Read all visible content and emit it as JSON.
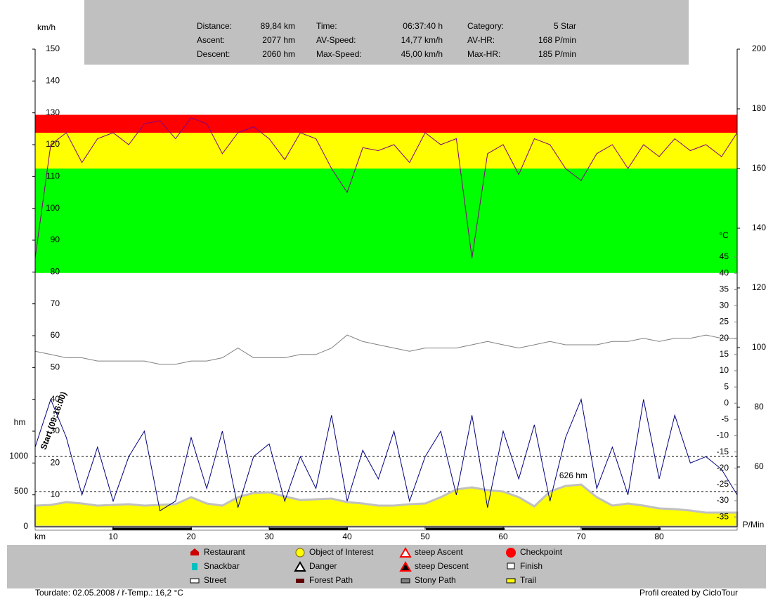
{
  "summary": {
    "rows": [
      [
        "Distance:",
        "89,84 km",
        "Time:",
        "06:37:40 h",
        "Category:",
        "5 Star"
      ],
      [
        "Ascent:",
        "2077 hm",
        "AV-Speed:",
        "14,77 km/h",
        "AV-HR:",
        "168 P/min"
      ],
      [
        "Descent:",
        "2060 hm",
        "Max-Speed:",
        "45,00 km/h",
        "Max-HR:",
        "185 P/min"
      ]
    ]
  },
  "chart_data": {
    "type": "line",
    "x": [
      0,
      2,
      4,
      6,
      8,
      10,
      12,
      14,
      16,
      18,
      20,
      22,
      24,
      26,
      28,
      30,
      32,
      34,
      36,
      38,
      40,
      42,
      44,
      46,
      48,
      50,
      52,
      54,
      56,
      58,
      60,
      62,
      64,
      66,
      68,
      70,
      72,
      74,
      76,
      78,
      80,
      82,
      84,
      86,
      88,
      90
    ],
    "xlim": [
      0,
      90
    ],
    "xticks": [
      10,
      20,
      30,
      40,
      50,
      60,
      70,
      80
    ],
    "x_label": "km",
    "ylim": [
      0,
      150
    ],
    "yticks": [
      10,
      20,
      30,
      40,
      50,
      60,
      70,
      80,
      90,
      100,
      110,
      120,
      130,
      140,
      150
    ],
    "y_label": "km/h",
    "y2lim": [
      40,
      200
    ],
    "y2ticks": [
      60,
      80,
      100,
      120,
      140,
      160,
      180,
      200
    ],
    "y2_label": "P/Min",
    "temp_lim": [
      -38,
      109
    ],
    "temp_ticks": [
      -35,
      -30,
      -25,
      -20,
      -15,
      -10,
      -5,
      0,
      5,
      10,
      15,
      20,
      25,
      30,
      35,
      40,
      45
    ],
    "temp_label": "°C",
    "elev_lim": [
      0,
      6800
    ],
    "elev_ticks": [
      0,
      500,
      1000
    ],
    "elev_label": "hm",
    "zones": [
      {
        "from": 125,
        "to": 160,
        "color": "#00ff00"
      },
      {
        "from": 160,
        "to": 172,
        "color": "#ffff00"
      },
      {
        "from": 172,
        "to": 178,
        "color": "#ff0000"
      }
    ],
    "series": [
      {
        "axis": "elev",
        "color": "#ffff00",
        "values": [
          300,
          310,
          350,
          330,
          300,
          310,
          320,
          300,
          310,
          320,
          420,
          330,
          300,
          420,
          480,
          490,
          430,
          380,
          390,
          400,
          350,
          330,
          300,
          300,
          320,
          330,
          420,
          530,
          560,
          520,
          500,
          420,
          290,
          500,
          580,
          600,
          420,
          300,
          330,
          300,
          260,
          250,
          230,
          200,
          200,
          200
        ]
      },
      {
        "axis": "temp",
        "color": "#808080",
        "values": [
          16,
          15,
          14,
          14,
          13,
          13,
          13,
          13,
          12,
          12,
          13,
          13,
          14,
          17,
          14,
          14,
          14,
          15,
          15,
          17,
          21,
          19,
          18,
          17,
          16,
          17,
          17,
          17,
          18,
          19,
          18,
          17,
          18,
          19,
          18,
          18,
          18,
          19,
          19,
          20,
          19,
          20,
          20,
          21,
          20,
          20
        ]
      },
      {
        "axis": "y",
        "color": "#000080",
        "values": [
          25,
          40,
          28,
          10,
          25,
          8,
          22,
          30,
          5,
          8,
          28,
          12,
          30,
          6,
          22,
          26,
          8,
          22,
          12,
          35,
          8,
          24,
          15,
          30,
          8,
          22,
          30,
          10,
          35,
          6,
          30,
          15,
          32,
          8,
          28,
          40,
          12,
          25,
          10,
          40,
          15,
          35,
          20,
          22,
          18,
          10
        ]
      },
      {
        "axis": "y2",
        "color": "#800080",
        "values": [
          130,
          168,
          172,
          162,
          170,
          172,
          168,
          175,
          176,
          170,
          177,
          175,
          165,
          172,
          174,
          170,
          163,
          172,
          170,
          160,
          152,
          167,
          166,
          168,
          162,
          172,
          168,
          170,
          130,
          165,
          168,
          158,
          170,
          168,
          160,
          156,
          165,
          168,
          160,
          168,
          164,
          170,
          166,
          168,
          164,
          172
        ]
      }
    ],
    "annotations": [
      {
        "text": "Start (09:16:00)",
        "x": 0
      },
      {
        "text": "626 hm",
        "x": 69
      }
    ]
  },
  "legend": [
    "Restaurant",
    "Object of Interest",
    "steep Ascent",
    "Checkpoint",
    "Snackbar",
    "Danger",
    "steep Descent",
    "Finish",
    "Street",
    "Forest Path",
    "Stony Path",
    "Trail"
  ],
  "footer": {
    "left": "Tourdate: 02.05.2008  /  ř-Temp.: 16,2 °C",
    "right": "Profil created by CicloTour"
  }
}
